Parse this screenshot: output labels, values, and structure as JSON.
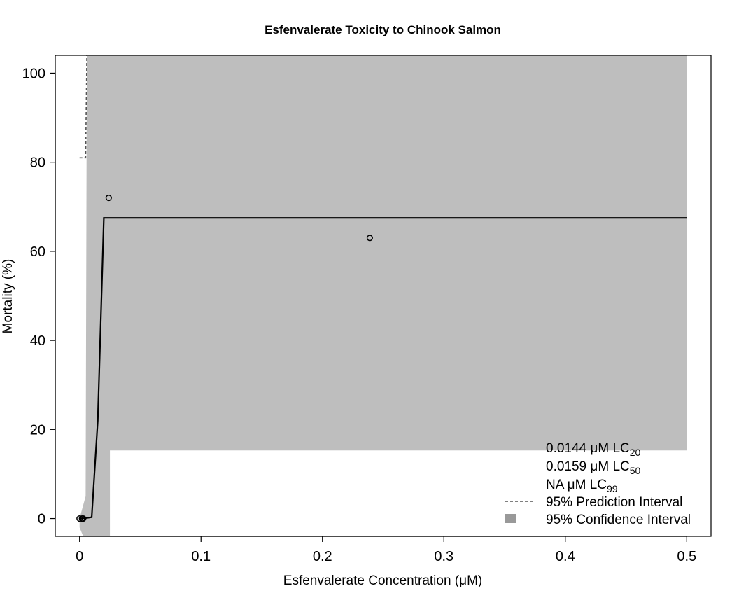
{
  "chart_data": {
    "type": "line",
    "title": "Esfenvalerate Toxicity to Chinook Salmon",
    "xlabel": "Esfenvalerate Concentration (μM)",
    "ylabel": "Mortality (%)",
    "xlim": [
      -0.02,
      0.52
    ],
    "ylim": [
      -4,
      104
    ],
    "xticks": [
      0,
      0.1,
      0.2,
      0.3,
      0.4,
      0.5
    ],
    "xtick_labels": [
      "0",
      "0.1",
      "0.2",
      "0.3",
      "0.4",
      "0.5"
    ],
    "yticks": [
      0,
      20,
      40,
      60,
      80,
      100
    ],
    "ytick_labels": [
      "0",
      "20",
      "40",
      "60",
      "80",
      "100"
    ],
    "grid": false,
    "legend_position": "bottom-right",
    "observations": [
      {
        "x": 0.0,
        "y": 0
      },
      {
        "x": 0.002,
        "y": 0
      },
      {
        "x": 0.003,
        "y": 0
      },
      {
        "x": 0.024,
        "y": 72
      },
      {
        "x": 0.239,
        "y": 63
      }
    ],
    "fit_curve": [
      [
        0.0,
        0
      ],
      [
        0.005,
        0.1
      ],
      [
        0.01,
        0.3
      ],
      [
        0.015,
        22
      ],
      [
        0.02,
        67.5
      ],
      [
        0.1,
        67.5
      ],
      [
        0.3,
        67.5
      ],
      [
        0.5,
        67.5
      ]
    ],
    "confidence_band": {
      "upper": [
        [
          0.005,
          5
        ],
        [
          0.006,
          104
        ],
        [
          0.5,
          104
        ]
      ],
      "lower": [
        [
          0.5,
          15.3
        ],
        [
          0.025,
          15.3
        ],
        [
          0.025,
          -4
        ],
        [
          0.003,
          -4
        ],
        [
          0.0,
          -2
        ],
        [
          0.0,
          0
        ]
      ]
    },
    "prediction_interval": [
      [
        0.0,
        81
      ],
      [
        0.005,
        81
      ],
      [
        0.006,
        104
      ]
    ],
    "lc_labels": [
      {
        "value": "0.0144 μM LC",
        "sub": "20"
      },
      {
        "value": "0.0159 μM LC",
        "sub": "50"
      },
      {
        "value": "NA μM LC",
        "sub": "99"
      }
    ],
    "legend": {
      "prediction_label": "95% Prediction Interval",
      "confidence_label": "95% Confidence Interval"
    },
    "colors": {
      "band": "#bebebe",
      "legend_fill": "#999999",
      "line": "#000000",
      "prediction_line": "#555555"
    }
  }
}
